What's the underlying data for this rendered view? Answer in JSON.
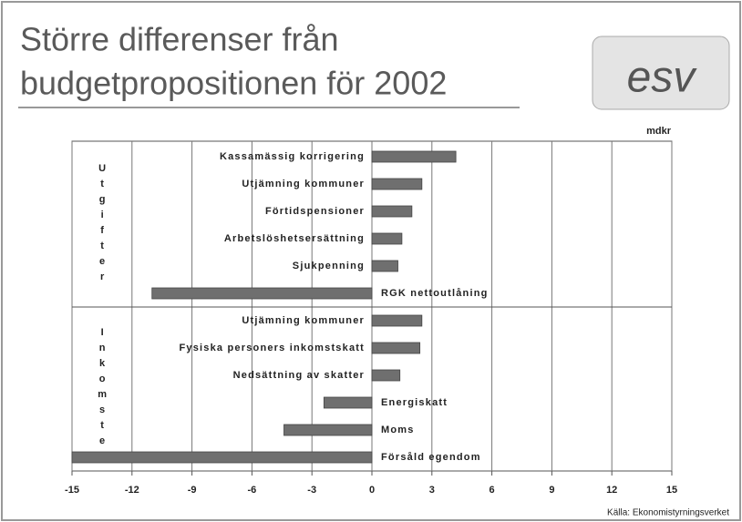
{
  "chart_data": {
    "type": "bar",
    "orientation": "horizontal",
    "title": "Större differenser från budgetpropositionen för 2002",
    "logo": "esv",
    "unit": "mdkr",
    "source": "Källa: Ekonomistyrningsverket",
    "color": "#6f6f6f",
    "groups": [
      {
        "name": "Utgifter",
        "categories": [
          "Kassamässig korrigering",
          "Utjämning kommuner",
          "Förtidspensioner",
          "Arbetslöshetsersättning",
          "Sjukpenning",
          "RGK nettoutlåning"
        ],
        "values": [
          4.2,
          2.5,
          2.0,
          1.5,
          1.3,
          -11.0
        ]
      },
      {
        "name": "Inkomster",
        "categories": [
          "Utjämning kommuner",
          "Fysiska personers inkomstskatt",
          "Nedsättning av skatter",
          "Energiskatt",
          "Moms",
          "Försåld egendom"
        ],
        "values": [
          2.5,
          2.4,
          1.4,
          -2.4,
          -4.4,
          -15.0
        ]
      }
    ],
    "xlim": [
      -15,
      15
    ],
    "xticks": [
      -15,
      -12,
      -9,
      -6,
      -3,
      0,
      3,
      6,
      9,
      12,
      15
    ],
    "grid": true
  }
}
